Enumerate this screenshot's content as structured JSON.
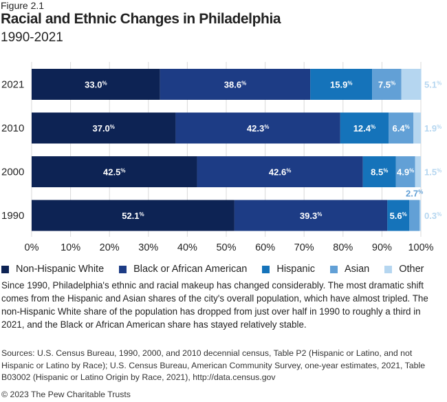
{
  "figure_label": "Figure 2.1",
  "chart_data": {
    "type": "bar",
    "orientation": "horizontal",
    "stacked": true,
    "title": "Racial and Ethnic Changes in Philadelphia",
    "subtitle": "1990-2021",
    "categories": [
      "2021",
      "2010",
      "2000",
      "1990"
    ],
    "series": [
      {
        "name": "Non-Hispanic White",
        "color": "#0d2354",
        "values": [
          33.0,
          37.0,
          42.5,
          52.1
        ]
      },
      {
        "name": "Black or African American",
        "color": "#1d3c85",
        "values": [
          38.6,
          42.3,
          42.6,
          39.3
        ]
      },
      {
        "name": "Hispanic",
        "color": "#1573ba",
        "values": [
          15.9,
          12.4,
          8.5,
          5.6
        ]
      },
      {
        "name": "Asian",
        "color": "#62a0d6",
        "values": [
          7.5,
          6.4,
          4.9,
          2.7
        ]
      },
      {
        "name": "Other",
        "color": "#b5d6f0",
        "values": [
          5.1,
          1.9,
          1.5,
          0.3
        ]
      }
    ],
    "xlim": [
      0,
      100
    ],
    "x_ticks": [
      "0%",
      "10%",
      "20%",
      "30%",
      "40%",
      "50%",
      "60%",
      "70%",
      "80%",
      "90%",
      "100%"
    ],
    "grid": true,
    "legend": "bottom",
    "value_suffix": "%"
  },
  "description": "Since 1990, Philadelphia's ethnic and racial makeup has changed considerably. The most dramatic shift comes from the Hispanic and Asian shares of the city's overall population, which have almost tripled. The non-Hispanic White share of the population has dropped from just over half in 1990 to roughly a third in 2021, and the Black or African American share has stayed relatively stable.",
  "sources": "Sources: U.S. Census Bureau, 1990, 2000, and 2010 decennial census, Table P2 (Hispanic or Latino, and not Hispanic or Latino by Race); U.S. Census Bureau, American Community Survey, one-year estimates, 2021, Table B03002 (Hispanic or Latino Origin by Race, 2021), http://data.census.gov",
  "copyright": "© 2023 The Pew Charitable Trusts"
}
